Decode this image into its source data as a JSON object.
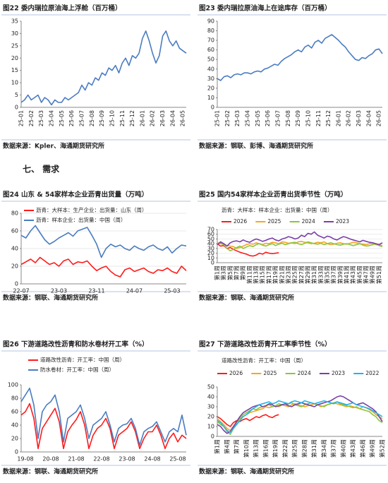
{
  "section_heading": "七、 需求",
  "chart_data": [
    {
      "type": "line",
      "title": "图22  委内瑞拉原油海上浮舱（百万桶）",
      "source": "数据来源：Kpler、海通期货研究所",
      "categories": [
        "25-01",
        null,
        null,
        "25-02",
        null,
        null,
        "25-03",
        null,
        null,
        "25-04",
        null,
        null,
        "25-05",
        null,
        null,
        "25-06",
        null,
        null,
        "25-07",
        null,
        null,
        "25-08",
        null,
        null,
        "25-09",
        null,
        null,
        "25-10",
        null,
        null,
        "25-11",
        null,
        null,
        "25-12",
        null,
        null,
        "26-01",
        null,
        null,
        "26-02",
        null,
        null,
        "26-03",
        null,
        null,
        "26-04",
        null,
        null,
        "26-05",
        null
      ],
      "series": [
        {
          "color": "#4a7cc0",
          "values": [
            2,
            3,
            5,
            3,
            4,
            5,
            2,
            4,
            3,
            1,
            3,
            2,
            2,
            4,
            3,
            4,
            5,
            6,
            9,
            7,
            10,
            9,
            12,
            11,
            14,
            13,
            16,
            15,
            17,
            14,
            18,
            20,
            17,
            21,
            20,
            22,
            28,
            31,
            27,
            22,
            18,
            21,
            29,
            31,
            27,
            25,
            27,
            24,
            23,
            22
          ]
        }
      ],
      "ylim": [
        0,
        35
      ],
      "yticks": [
        0,
        5,
        10,
        15,
        20,
        25,
        30,
        35
      ],
      "grid": false,
      "rotate_x_labels": true
    },
    {
      "type": "line",
      "title": "图23  委内瑞拉原油海上在途库存（百万桶）",
      "source": "数据来源：钢联、彭博、海通期货研究所",
      "categories": [
        "25-01",
        null,
        null,
        "25-02",
        null,
        null,
        "25-03",
        null,
        null,
        "25-04",
        null,
        null,
        "25-05",
        null,
        null,
        "25-06",
        null,
        null,
        "25-07",
        null,
        null,
        "25-08",
        null,
        null,
        "25-09",
        null,
        null,
        "25-10",
        null,
        null,
        "25-11",
        null,
        null,
        "25-12",
        null,
        null,
        "26-01",
        null,
        null,
        "26-02",
        null,
        null,
        "26-03",
        null,
        null,
        "26-04",
        null,
        null,
        "26-05",
        null
      ],
      "series": [
        {
          "color": "#4a7cc0",
          "values": [
            30,
            28,
            32,
            33,
            31,
            34,
            35,
            34,
            36,
            36,
            35,
            37,
            38,
            37,
            40,
            41,
            43,
            45,
            44,
            48,
            51,
            53,
            55,
            58,
            60,
            58,
            63,
            65,
            62,
            68,
            70,
            67,
            72,
            74,
            76,
            73,
            70,
            66,
            63,
            58,
            54,
            50,
            49,
            52,
            51,
            54,
            56,
            60,
            61,
            56
          ]
        }
      ],
      "ylim": [
        0,
        90
      ],
      "yticks": [
        0,
        10,
        20,
        30,
        40,
        50,
        60,
        70,
        80,
        90
      ],
      "grid": false,
      "rotate_x_labels": true
    },
    {
      "type": "line",
      "title": "图24  山东 & 54家样本企业沥青出货量（万吨）",
      "source": "数据来源：钢联、海通期货研究所",
      "categories": [
        "22-07",
        null,
        null,
        null,
        null,
        null,
        null,
        null,
        "23-03",
        null,
        null,
        null,
        null,
        null,
        null,
        null,
        "23-11",
        null,
        null,
        null,
        null,
        null,
        null,
        null,
        "24-07",
        null,
        null,
        null,
        null,
        null,
        null,
        null,
        "25-03",
        null,
        null,
        null
      ],
      "series": [
        {
          "name": "沥青：大样本：生产企业：出货量：山东（周）",
          "color": "#ff1a1a",
          "values": [
            22,
            25,
            28,
            24,
            30,
            26,
            22,
            24,
            20,
            26,
            28,
            22,
            25,
            24,
            26,
            20,
            15,
            18,
            20,
            14,
            10,
            8,
            16,
            18,
            14,
            16,
            18,
            14,
            12,
            16,
            15,
            18,
            14,
            12,
            20,
            15
          ]
        },
        {
          "name": "沥青：样本企业：出货量：中国（周）",
          "color": "#4a7cc0",
          "values": [
            55,
            52,
            60,
            66,
            58,
            50,
            45,
            48,
            52,
            55,
            58,
            54,
            60,
            62,
            64,
            55,
            45,
            30,
            40,
            45,
            42,
            44,
            40,
            38,
            43,
            40,
            38,
            42,
            44,
            40,
            38,
            42,
            35,
            40,
            44,
            43
          ]
        }
      ],
      "ylim": [
        0,
        80
      ],
      "yticks": [
        0,
        20,
        40,
        60,
        80
      ],
      "grid": true,
      "legend": "top-left",
      "rotate_x_labels": false
    },
    {
      "type": "line",
      "title": "图25  国内54家样本企业沥青出货季节性（万吨）",
      "subtitle": "沥青：大样本：样本企业：出货量：中国（周）",
      "source": "数据来源：钢联、海通期货研究所",
      "categories": [
        "第1周",
        null,
        "第3周",
        null,
        "第5周",
        null,
        "第7周",
        null,
        "第9周",
        null,
        "第11周",
        null,
        "第13周",
        null,
        "第15周",
        null,
        "第17周",
        null,
        "第19周",
        null,
        "第21周",
        null,
        "第23周",
        null,
        "第25周",
        null,
        "第27周",
        null,
        "第29周",
        null,
        "第31周",
        null,
        "第33周",
        null,
        "第35周",
        null,
        "第37周",
        null,
        "第39周",
        null,
        "第41周",
        null,
        "第43周",
        null,
        "第45周",
        null,
        "第47周",
        null,
        "第49周",
        null,
        "第51周",
        null
      ],
      "series": [
        {
          "name": "2026",
          "color": "#ff1a1a",
          "values": [
            40,
            35,
            36,
            30,
            32,
            28,
            25,
            22,
            20,
            18,
            15,
            14,
            16,
            20,
            18,
            22,
            20,
            19,
            20,
            21,
            null,
            null,
            null,
            null,
            null,
            null,
            null,
            null,
            null,
            null,
            null,
            null,
            null,
            null,
            null,
            null,
            null,
            null,
            null,
            null,
            null,
            null,
            null,
            null,
            null,
            null,
            null,
            null,
            null,
            null,
            null,
            null
          ]
        },
        {
          "name": "2025",
          "color": "#f5a623",
          "values": [
            42,
            40,
            38,
            36,
            35,
            34,
            30,
            32,
            35,
            38,
            40,
            39,
            42,
            40,
            38,
            41,
            40,
            43,
            42,
            40,
            44,
            43,
            41,
            42,
            40,
            44,
            45,
            43,
            42,
            40,
            41,
            43,
            42,
            44,
            40,
            38,
            39,
            41,
            42,
            40,
            39,
            41,
            43,
            42,
            40,
            39,
            38,
            40,
            41,
            38,
            37,
            36
          ]
        },
        {
          "name": "2024",
          "color": "#8cc63f",
          "values": [
            40,
            42,
            38,
            30,
            25,
            28,
            32,
            35,
            30,
            33,
            36,
            34,
            38,
            40,
            37,
            35,
            38,
            40,
            36,
            39,
            41,
            38,
            40,
            42,
            43,
            40,
            38,
            41,
            44,
            42,
            40,
            39,
            41,
            38,
            40,
            42,
            40,
            38,
            37,
            39,
            40,
            38,
            36,
            38,
            40,
            37,
            35,
            36,
            38,
            40,
            36,
            34
          ]
        },
        {
          "name": "2023",
          "color": "#7b3fa8",
          "values": [
            38,
            44,
            40,
            35,
            42,
            45,
            46,
            44,
            48,
            45,
            43,
            47,
            50,
            48,
            45,
            47,
            50,
            52,
            48,
            46,
            50,
            52,
            55,
            53,
            50,
            52,
            58,
            55,
            62,
            60,
            65,
            58,
            55,
            52,
            56,
            54,
            50,
            48,
            52,
            55,
            53,
            50,
            48,
            46,
            44,
            47,
            45,
            43,
            42,
            40,
            38,
            42
          ]
        }
      ],
      "ylim": [
        0,
        70
      ],
      "yticks": [
        0,
        10,
        20,
        30,
        40,
        50,
        60,
        70
      ],
      "grid": true,
      "legend": "top",
      "rotate_x_labels": true
    },
    {
      "type": "line",
      "title": "图26  下游道路改性沥青和防水卷材开工率（%）",
      "source": "数据来源：钢联、海通期货研究所",
      "categories": [
        null,
        "19-08",
        null,
        null,
        null,
        null,
        null,
        "20-08",
        null,
        null,
        null,
        null,
        null,
        "21-08",
        null,
        null,
        null,
        null,
        null,
        "22-08",
        null,
        null,
        null,
        null,
        null,
        "23-08",
        null,
        null,
        null,
        null,
        null,
        "24-08",
        null,
        null,
        null,
        null,
        null,
        "25-08",
        null,
        null
      ],
      "series": [
        {
          "name": "道路改性沥青：开工率：中国（周）",
          "color": "#ff1a1a",
          "values": [
            55,
            60,
            72,
            50,
            5,
            35,
            45,
            55,
            65,
            45,
            5,
            30,
            40,
            48,
            60,
            40,
            5,
            25,
            35,
            40,
            50,
            35,
            5,
            25,
            30,
            35,
            45,
            30,
            5,
            20,
            30,
            30,
            40,
            25,
            5,
            20,
            28,
            15,
            25,
            20
          ]
        },
        {
          "name": "防水卷材：开工率：中国（周）",
          "color": "#4a7cc0",
          "values": [
            75,
            85,
            95,
            70,
            20,
            60,
            70,
            75,
            85,
            60,
            15,
            50,
            55,
            60,
            70,
            50,
            20,
            40,
            45,
            50,
            60,
            40,
            15,
            35,
            40,
            42,
            50,
            35,
            10,
            30,
            35,
            38,
            45,
            30,
            15,
            30,
            35,
            30,
            55,
            25
          ]
        }
      ],
      "ylim": [
        0,
        100
      ],
      "yticks": [
        0,
        20,
        40,
        60,
        80,
        100
      ],
      "grid": false,
      "legend": "top-left",
      "rotate_x_labels": false
    },
    {
      "type": "line",
      "title": "图27  下游道路改性沥青开工率季节性（%）",
      "subtitle": "道路改性沥青：开工率：中国（周）",
      "source": "数据来源：钢联、海通期货研究所",
      "categories": [
        "第1周",
        null,
        null,
        "第4周",
        null,
        null,
        "第7周",
        null,
        null,
        "第10周",
        null,
        null,
        "第13周",
        null,
        null,
        "第16周",
        null,
        null,
        "第19周",
        null,
        null,
        "第22周",
        null,
        null,
        "第25周",
        null,
        null,
        "第28周",
        null,
        null,
        "第31周",
        null,
        null,
        "第34周",
        null,
        null,
        "第37周",
        null,
        null,
        "第40周",
        null,
        null,
        "第43周",
        null,
        null,
        "第46周",
        null,
        null,
        "第49周",
        null,
        null,
        "第52周"
      ],
      "series": [
        {
          "name": "2026",
          "color": "#ff1a1a",
          "values": [
            20,
            18,
            15,
            12,
            10,
            14,
            16,
            15,
            17,
            18,
            16,
            18,
            20,
            19,
            21,
            22,
            20,
            19,
            21,
            22,
            null,
            null,
            null,
            null,
            null,
            null,
            null,
            null,
            null,
            null,
            null,
            null,
            null,
            null,
            null,
            null,
            null,
            null,
            null,
            null,
            null,
            null,
            null,
            null,
            null,
            null,
            null,
            null,
            null,
            null,
            null,
            null
          ]
        },
        {
          "name": "2025",
          "color": "#f5a623",
          "values": [
            18,
            15,
            12,
            8,
            6,
            10,
            15,
            18,
            20,
            22,
            24,
            25,
            26,
            27,
            28,
            30,
            29,
            30,
            31,
            30,
            32,
            31,
            30,
            32,
            33,
            32,
            31,
            30,
            31,
            32,
            33,
            32,
            30,
            31,
            32,
            33,
            34,
            33,
            32,
            31,
            30,
            31,
            30,
            29,
            28,
            30,
            29,
            27,
            25,
            22,
            20,
            18
          ]
        },
        {
          "name": "2024",
          "color": "#8cc63f",
          "values": [
            15,
            12,
            10,
            5,
            2,
            8,
            14,
            18,
            22,
            24,
            26,
            28,
            27,
            29,
            30,
            31,
            32,
            30,
            31,
            33,
            32,
            31,
            33,
            34,
            32,
            31,
            30,
            32,
            33,
            34,
            33,
            32,
            31,
            30,
            32,
            33,
            34,
            35,
            33,
            32,
            31,
            30,
            29,
            30,
            28,
            27,
            26,
            25,
            22,
            20,
            16,
            14
          ]
        },
        {
          "name": "2023",
          "color": "#7b3fa8",
          "values": [
            12,
            10,
            6,
            3,
            5,
            10,
            15,
            20,
            24,
            26,
            28,
            30,
            31,
            32,
            30,
            31,
            33,
            32,
            30,
            31,
            32,
            33,
            31,
            30,
            32,
            33,
            34,
            33,
            32,
            31,
            30,
            32,
            33,
            34,
            35,
            36,
            38,
            40,
            41,
            40,
            38,
            36,
            34,
            32,
            33,
            34,
            32,
            30,
            28,
            25,
            20,
            15
          ]
        },
        {
          "name": "2022",
          "color": "#1fb5ea",
          "values": [
            16,
            14,
            10,
            6,
            4,
            8,
            12,
            16,
            20,
            22,
            25,
            28,
            30,
            32,
            33,
            34,
            35,
            33,
            34,
            36,
            35,
            34,
            33,
            35,
            36,
            35,
            34,
            36,
            35,
            34,
            33,
            34,
            35,
            36,
            35,
            34,
            33,
            35,
            34,
            33,
            32,
            33,
            34,
            32,
            31,
            30,
            29,
            28,
            26,
            24,
            22,
            20
          ]
        }
      ],
      "ylim": [
        0,
        50
      ],
      "yticks": [
        0,
        10,
        20,
        30,
        40,
        50
      ],
      "grid": false,
      "legend": "top",
      "rotate_x_labels": true
    }
  ]
}
